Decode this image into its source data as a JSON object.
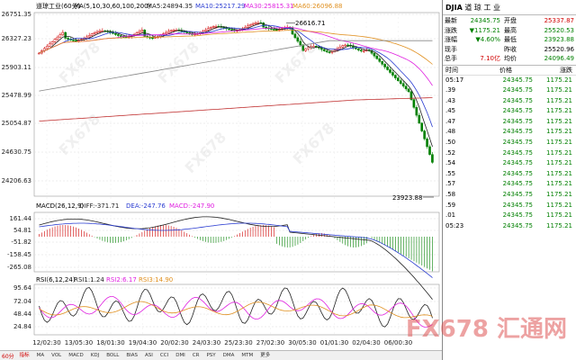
{
  "main_chart": {
    "title": "道琼工业(60分)",
    "ma_label": "MA(5,10,30,60,100,200)",
    "ma_values": [
      {
        "name": "MA5",
        "value": "24894.35",
        "color": "#222222"
      },
      {
        "name": "MA10",
        "value": "25217.29",
        "color": "#2a3cd1"
      },
      {
        "name": "MA30",
        "value": "25815.31",
        "color": "#e020e0"
      },
      {
        "name": "MA60",
        "value": "26096.88",
        "color": "#e09020"
      }
    ],
    "y_ticks": [
      "26751.35",
      "26327.23",
      "25903.11",
      "25478.99",
      "25054.87",
      "24630.75",
      "24206.63"
    ],
    "high_label": "26616.71",
    "low_label": "23923.88"
  },
  "macd": {
    "label": "MACD(26,12,9)",
    "dif": "DIFF:-371.71",
    "dea": "DEA:-247.76",
    "macd": "MACD:-247.90",
    "y_ticks": [
      "161.44",
      "54.81",
      "-51.82",
      "-158.45",
      "-265.08"
    ]
  },
  "rsi": {
    "label": "RSI(6,12,24)",
    "rsi1": "RSI1:1.24",
    "rsi2": "RSI2:6.17",
    "rsi3": "RSI3:14.90",
    "y_ticks": [
      "95.64",
      "72.04",
      "48.44",
      "24.84"
    ]
  },
  "x_labels": [
    "12/02:30",
    "13/05:30",
    "18/01:30",
    "19/04:30",
    "20/02:30",
    "24/03:30",
    "25/23:30",
    "27/02:30",
    "30/05:30",
    "01/01:30",
    "02/04:30",
    "06/00:30"
  ],
  "period_label": "60分",
  "tabs": [
    "指标",
    "MA",
    "VOL",
    "MACD",
    "KDJ",
    "BOLL",
    "BIAS",
    "ASI",
    "CCI",
    "DMI",
    "CR",
    "PSY",
    "DMA",
    "MTM",
    "更多"
  ],
  "panel": {
    "title_code": "DJIA",
    "title_name": "道 琼 工 业",
    "quote": [
      {
        "l1": "最新",
        "v1": "24345.75",
        "c1": "green",
        "l2": "开盘",
        "v2": "25337.87",
        "c2": "red"
      },
      {
        "l1": "涨跌",
        "v1": "▼1175.21",
        "c1": "green",
        "l2": "最高",
        "v2": "25520.53",
        "c2": "green"
      },
      {
        "l1": "涨幅",
        "v1": "▼4.60%",
        "c1": "green",
        "l2": "最低",
        "v2": "23923.88",
        "c2": "green"
      },
      {
        "l1": "现手",
        "v1": "",
        "c1": "green",
        "l2": "昨收",
        "v2": "25520.96",
        "c2": ""
      },
      {
        "l1": "总手",
        "v1": "7.10亿",
        "c1": "red",
        "l2": "均价",
        "v2": "24096.49",
        "c2": "green"
      }
    ],
    "table_headers": [
      "时间",
      "价格",
      "涨跌"
    ],
    "ticks": [
      {
        "t": "05:17",
        "p": "24345.75",
        "c": "1175.21"
      },
      {
        "t": ".39",
        "p": "24345.75",
        "c": "1175.21"
      },
      {
        "t": ".43",
        "p": "24345.75",
        "c": "1175.21"
      },
      {
        "t": ".45",
        "p": "24345.75",
        "c": "1175.21"
      },
      {
        "t": ".47",
        "p": "24345.75",
        "c": "1175.21"
      },
      {
        "t": ".48",
        "p": "24345.75",
        "c": "1175.21"
      },
      {
        "t": ".50",
        "p": "24345.75",
        "c": "1175.21"
      },
      {
        "t": ".52",
        "p": "24345.75",
        "c": "1175.21"
      },
      {
        "t": ".54",
        "p": "24345.75",
        "c": "1175.21"
      },
      {
        "t": ".55",
        "p": "24345.75",
        "c": "1175.21"
      },
      {
        "t": ".57",
        "p": "24345.75",
        "c": "1175.21"
      },
      {
        "t": ".58",
        "p": "24345.75",
        "c": "1175.21"
      },
      {
        "t": ".59",
        "p": "24345.75",
        "c": "1175.21"
      },
      {
        "t": ".01",
        "p": "24345.75",
        "c": "1175.21"
      },
      {
        "t": "05:23",
        "p": "24345.75",
        "c": "1175.21"
      }
    ]
  },
  "colors": {
    "up": "#d00000",
    "down": "#008000",
    "ma100": "#888888",
    "ma200": "#c03030"
  },
  "watermarks": [
    "FX678",
    "FX678",
    "FX678",
    "FX678",
    "FX678",
    "FX678"
  ],
  "brand": "FX678 汇通网"
}
